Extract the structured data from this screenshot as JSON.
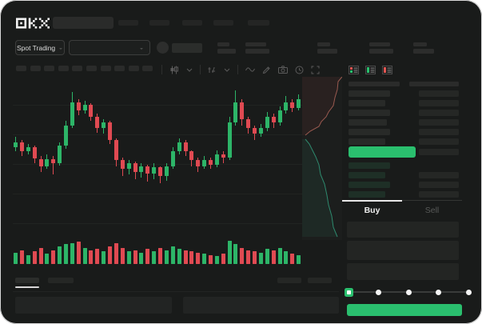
{
  "app": {
    "name": "OKX",
    "logo_label": "OKX"
  },
  "colors": {
    "window_bg": "#191b1a",
    "accent_green": "#2abf6e",
    "candle_up": "#2db568",
    "candle_down": "#e04a52",
    "depth_ask_line": "#9a5a50",
    "depth_bid_line": "#2e8a6e",
    "depth_ask_fill": "rgba(160,70,60,0.10)",
    "depth_bid_fill": "rgba(45,150,110,0.10)"
  },
  "header": {
    "nav_items": 5
  },
  "subheader": {
    "market_type_label": "Spot Trading",
    "chevron": "⌄",
    "stat_groups": 5
  },
  "toolbar": {
    "timeframe_buttons": 10,
    "icons": [
      "candle-style-icon",
      "chevron-down-icon",
      "indicators-icon",
      "chevron-down-icon",
      "wave-icon",
      "pencil-icon",
      "camera-icon",
      "clock-icon",
      "expand-icon"
    ]
  },
  "order_book": {
    "view_toggles": [
      "book-both-icon",
      "book-bids-icon",
      "book-asks-icon"
    ],
    "ask_rows": [
      {
        "pw": 52,
        "aw": 50
      },
      {
        "pw": 46,
        "aw": 50
      },
      {
        "pw": 52,
        "aw": 50
      },
      {
        "pw": 48,
        "aw": 50
      },
      {
        "pw": 52,
        "aw": 50
      },
      {
        "pw": 46,
        "aw": 50
      }
    ],
    "price_row": {
      "highlight": "green",
      "w": 84,
      "aw": 50
    },
    "bid_rows": [
      {
        "pw": 52,
        "aw": 0
      },
      {
        "pw": 46,
        "aw": 50
      },
      {
        "pw": 52,
        "aw": 50
      },
      {
        "pw": 46,
        "aw": 50
      }
    ]
  },
  "trade_panel": {
    "buy_tab": "Buy",
    "sell_tab": "Sell",
    "active_tab": "Buy",
    "fields": 3,
    "slider_stops": 5,
    "slider_active_index": 0
  },
  "bottom_tabs": {
    "tabs": 2,
    "active_index": 0,
    "right_blocks": 2,
    "panels": 2
  },
  "chart_data": {
    "type": "candlestick",
    "title": "",
    "xlabel": "",
    "ylabel": "",
    "note": "OHLC values normalized to a 0-100 price scale; UI shows no visible axis tick labels (redacted placeholders).",
    "grid": true,
    "candles": [
      [
        55,
        62,
        52,
        58
      ],
      [
        58,
        60,
        49,
        52
      ],
      [
        52,
        57,
        50,
        55
      ],
      [
        55,
        56,
        44,
        47
      ],
      [
        47,
        49,
        38,
        42
      ],
      [
        42,
        50,
        40,
        47
      ],
      [
        47,
        49,
        36,
        44
      ],
      [
        44,
        58,
        42,
        56
      ],
      [
        56,
        73,
        54,
        70
      ],
      [
        70,
        93,
        68,
        86
      ],
      [
        86,
        88,
        77,
        80
      ],
      [
        80,
        87,
        78,
        84
      ],
      [
        84,
        85,
        73,
        76
      ],
      [
        76,
        78,
        65,
        68
      ],
      [
        68,
        74,
        64,
        72
      ],
      [
        72,
        73,
        57,
        60
      ],
      [
        60,
        61,
        42,
        46
      ],
      [
        46,
        48,
        35,
        40
      ],
      [
        40,
        46,
        36,
        44
      ],
      [
        44,
        45,
        33,
        38
      ],
      [
        38,
        44,
        34,
        42
      ],
      [
        42,
        43,
        31,
        37
      ],
      [
        37,
        44,
        33,
        41
      ],
      [
        41,
        42,
        30,
        35
      ],
      [
        35,
        44,
        32,
        42
      ],
      [
        42,
        55,
        40,
        52
      ],
      [
        52,
        61,
        50,
        58
      ],
      [
        58,
        60,
        49,
        52
      ],
      [
        52,
        53,
        42,
        46
      ],
      [
        46,
        48,
        38,
        42
      ],
      [
        42,
        49,
        40,
        46
      ],
      [
        46,
        48,
        40,
        43
      ],
      [
        43,
        53,
        41,
        50
      ],
      [
        50,
        52,
        44,
        48
      ],
      [
        48,
        76,
        46,
        72
      ],
      [
        72,
        94,
        70,
        86
      ],
      [
        86,
        88,
        70,
        74
      ],
      [
        74,
        76,
        64,
        68
      ],
      [
        68,
        70,
        60,
        64
      ],
      [
        64,
        71,
        62,
        68
      ],
      [
        68,
        79,
        66,
        76
      ],
      [
        76,
        78,
        68,
        72
      ],
      [
        72,
        83,
        70,
        80
      ],
      [
        80,
        90,
        78,
        86
      ],
      [
        86,
        88,
        79,
        82
      ],
      [
        82,
        91,
        80,
        88
      ]
    ],
    "candle_format": "[open, high, low, close]",
    "volume": [
      35,
      45,
      25,
      40,
      55,
      30,
      45,
      60,
      70,
      75,
      80,
      55,
      45,
      50,
      40,
      60,
      75,
      55,
      40,
      45,
      35,
      50,
      40,
      55,
      45,
      60,
      50,
      45,
      40,
      35,
      30,
      25,
      20,
      30,
      85,
      70,
      55,
      45,
      40,
      35,
      50,
      45,
      55,
      40,
      30,
      25
    ],
    "depth": {
      "asks": [
        [
          50,
          0
        ],
        [
          45,
          6
        ],
        [
          44,
          16
        ],
        [
          41,
          26
        ],
        [
          39,
          36
        ],
        [
          33,
          44
        ],
        [
          30,
          50
        ],
        [
          24,
          56
        ],
        [
          21,
          62
        ],
        [
          10,
          68
        ],
        [
          4,
          73
        ]
      ],
      "bids": [
        [
          4,
          78
        ],
        [
          9,
          84
        ],
        [
          13,
          92
        ],
        [
          17,
          100
        ],
        [
          21,
          110
        ],
        [
          23,
          122
        ],
        [
          28,
          134
        ],
        [
          31,
          148
        ],
        [
          33,
          160
        ],
        [
          37,
          174
        ],
        [
          39,
          188
        ],
        [
          44,
          200
        ]
      ]
    }
  }
}
